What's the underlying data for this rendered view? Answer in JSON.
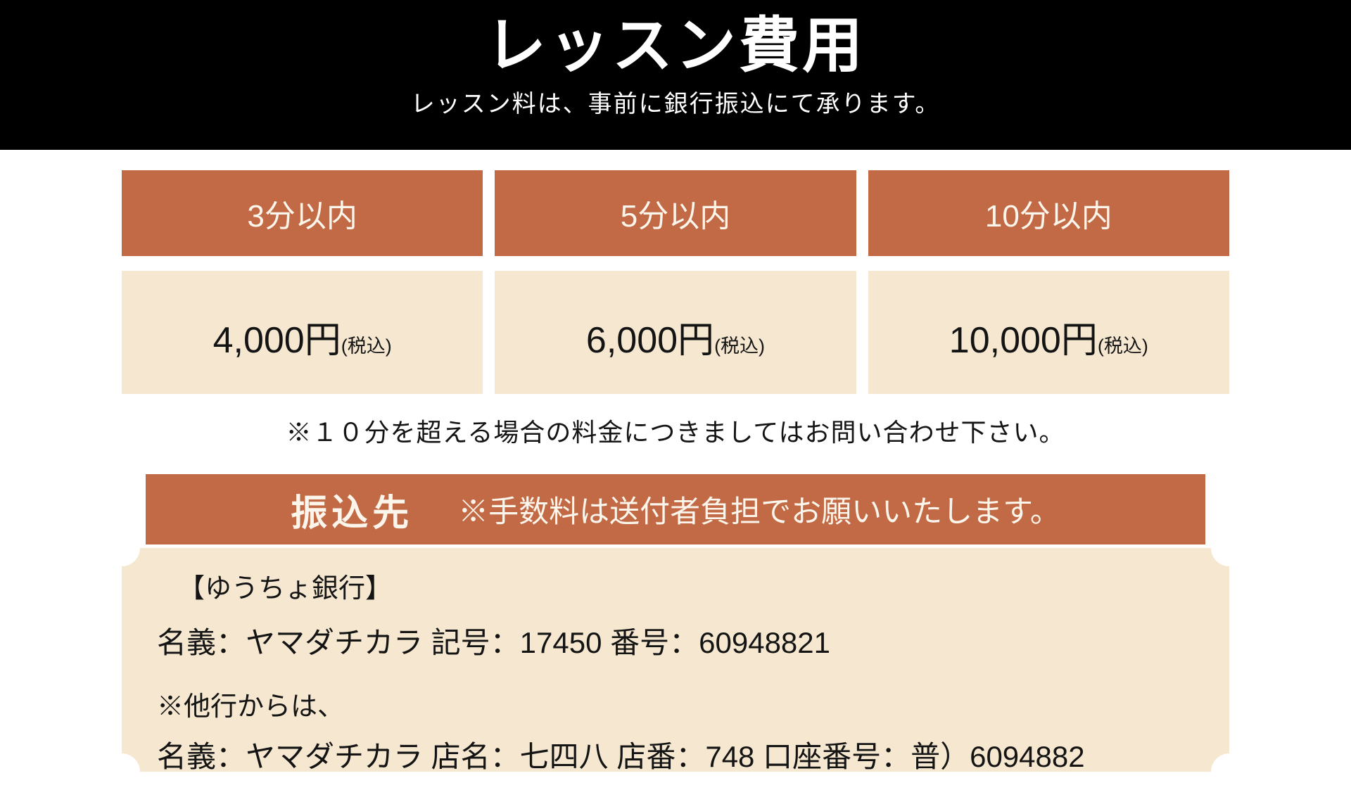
{
  "header": {
    "title": "レッスン費用",
    "subtitle": "レッスン料は、事前に銀行振込にて承ります。"
  },
  "pricing": {
    "columns": [
      {
        "duration": "3分以内",
        "price": "4,000円",
        "tax_note": "(税込)"
      },
      {
        "duration": "5分以内",
        "price": "6,000円",
        "tax_note": "(税込)"
      },
      {
        "duration": "10分以内",
        "price": "10,000円",
        "tax_note": "(税込)"
      }
    ],
    "note": "※１０分を超える場合の料金につきましてはお問い合わせ下さい。"
  },
  "transfer": {
    "banner_title": "振込先",
    "banner_note": "※手数料は送付者負担でお願いいたします。",
    "bank_name": "【ゆうちょ銀行】",
    "account_line": "名義：ヤマダチカラ 記号：17450 番号：60948821",
    "other_bank_label": "※他行からは、",
    "other_bank_line": "名義：ヤマダチカラ 店名：七四八 店番：748 口座番号：普）6094882"
  },
  "colors": {
    "accent": "#C26A45",
    "cream": "#F6E8D0",
    "header_background": "#000000",
    "text": "#141414"
  }
}
